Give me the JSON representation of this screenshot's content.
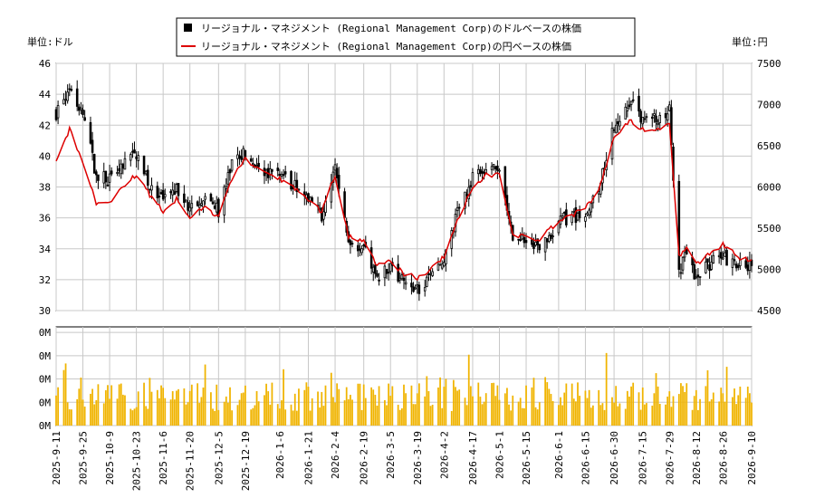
{
  "legend": {
    "usd": "リージョナル・マネジメント (Regional Management Corp)のドルベースの株価",
    "jpy": "リージョナル・マネジメント (Regional Management Corp)の円ベースの株価"
  },
  "unit_left": "単位:ドル",
  "unit_right": "単位:円",
  "colors": {
    "candle": "#000000",
    "jpy_line": "#dd0000",
    "volume": "#f0b400",
    "grid": "#c8c8c8"
  },
  "chart_data": {
    "type": "candlestick",
    "y_left": {
      "min": 30,
      "max": 46,
      "ticks": [
        "30",
        "32",
        "34",
        "36",
        "38",
        "40",
        "42",
        "44",
        "46"
      ]
    },
    "y_right": {
      "min": 4500,
      "max": 7500,
      "ticks": [
        "4500",
        "5000",
        "5500",
        "6000",
        "6500",
        "7000",
        "7500"
      ]
    },
    "volume_axis": {
      "ticks": [
        "0M",
        "0M",
        "0M",
        "0M",
        "0M"
      ]
    },
    "x_tick_labels": [
      "2025-9-11",
      "2025-9-25",
      "2025-10-9",
      "2025-10-23",
      "2025-11-6",
      "2025-11-20",
      "2025-12-5",
      "2025-12-19",
      "2026-1-6",
      "2026-1-21",
      "2026-2-4",
      "2026-2-19",
      "2026-3-5",
      "2026-3-19",
      "2026-4-2",
      "2026-4-17",
      "2026-5-1",
      "2026-5-15",
      "2026-6-1",
      "2026-6-15",
      "2026-6-30",
      "2026-7-15",
      "2026-7-29",
      "2026-8-12",
      "2026-8-26",
      "2026-9-10"
    ],
    "close_keypoints": [
      [
        "2025-9-11",
        42.8
      ],
      [
        "2025-9-18",
        44.5
      ],
      [
        "2025-9-25",
        42.5
      ],
      [
        "2025-10-2",
        38.8
      ],
      [
        "2025-10-9",
        38.5
      ],
      [
        "2025-10-16",
        39.5
      ],
      [
        "2025-10-23",
        40.2
      ],
      [
        "2025-10-30",
        38.0
      ],
      [
        "2025-11-6",
        37.0
      ],
      [
        "2025-11-13",
        38.0
      ],
      [
        "2025-11-20",
        36.5
      ],
      [
        "2025-11-27",
        37.5
      ],
      [
        "2025-12-5",
        36.5
      ],
      [
        "2025-12-12",
        39.5
      ],
      [
        "2025-12-19",
        40.2
      ],
      [
        "2025-12-26",
        39.2
      ],
      [
        "2026-1-6",
        38.8
      ],
      [
        "2026-1-13",
        38.2
      ],
      [
        "2026-1-21",
        37.0
      ],
      [
        "2026-1-28",
        36.2
      ],
      [
        "2026-2-4",
        39.2
      ],
      [
        "2026-2-11",
        34.5
      ],
      [
        "2026-2-19",
        34.2
      ],
      [
        "2026-2-26",
        32.2
      ],
      [
        "2026-3-5",
        33.0
      ],
      [
        "2026-3-12",
        31.8
      ],
      [
        "2026-3-19",
        31.3
      ],
      [
        "2026-3-26",
        32.2
      ],
      [
        "2026-4-2",
        33.0
      ],
      [
        "2026-4-10",
        37.0
      ],
      [
        "2026-4-17",
        38.5
      ],
      [
        "2026-4-24",
        39.2
      ],
      [
        "2026-5-1",
        39.3
      ],
      [
        "2026-5-8",
        34.5
      ],
      [
        "2026-5-15",
        34.5
      ],
      [
        "2026-5-22",
        34.0
      ],
      [
        "2026-6-1",
        35.8
      ],
      [
        "2026-6-8",
        36.0
      ],
      [
        "2026-6-15",
        36.5
      ],
      [
        "2026-6-22",
        38.0
      ],
      [
        "2026-6-30",
        42.0
      ],
      [
        "2026-7-8",
        43.5
      ],
      [
        "2026-7-15",
        42.5
      ],
      [
        "2026-7-22",
        42.3
      ],
      [
        "2026-7-29",
        43.0
      ],
      [
        "2026-8-3",
        32.5
      ],
      [
        "2026-8-8",
        34.0
      ],
      [
        "2026-8-12",
        32.0
      ],
      [
        "2026-8-19",
        33.0
      ],
      [
        "2026-8-26",
        33.5
      ],
      [
        "2026-9-3",
        33.0
      ],
      [
        "2026-9-10",
        32.8
      ]
    ],
    "jpy_keypoints": [
      [
        "2025-9-11",
        6300
      ],
      [
        "2025-9-18",
        6700
      ],
      [
        "2025-9-25",
        6300
      ],
      [
        "2025-10-2",
        5800
      ],
      [
        "2025-10-9",
        5800
      ],
      [
        "2025-10-16",
        6000
      ],
      [
        "2025-10-23",
        6150
      ],
      [
        "2025-10-30",
        5900
      ],
      [
        "2025-11-6",
        5700
      ],
      [
        "2025-11-13",
        5850
      ],
      [
        "2025-11-20",
        5600
      ],
      [
        "2025-11-27",
        5750
      ],
      [
        "2025-12-5",
        5650
      ],
      [
        "2025-12-12",
        6100
      ],
      [
        "2025-12-19",
        6350
      ],
      [
        "2025-12-26",
        6200
      ],
      [
        "2026-1-6",
        6100
      ],
      [
        "2026-1-13",
        6000
      ],
      [
        "2026-1-21",
        5850
      ],
      [
        "2026-1-28",
        5700
      ],
      [
        "2026-2-4",
        6150
      ],
      [
        "2026-2-11",
        5400
      ],
      [
        "2026-2-19",
        5350
      ],
      [
        "2026-2-26",
        5050
      ],
      [
        "2026-3-5",
        5100
      ],
      [
        "2026-3-12",
        4950
      ],
      [
        "2026-3-19",
        4900
      ],
      [
        "2026-3-26",
        5000
      ],
      [
        "2026-4-2",
        5150
      ],
      [
        "2026-4-10",
        5650
      ],
      [
        "2026-4-17",
        6000
      ],
      [
        "2026-4-24",
        6150
      ],
      [
        "2026-5-1",
        6150
      ],
      [
        "2026-5-8",
        5400
      ],
      [
        "2026-5-15",
        5400
      ],
      [
        "2026-5-22",
        5350
      ],
      [
        "2026-6-1",
        5600
      ],
      [
        "2026-6-8",
        5650
      ],
      [
        "2026-6-15",
        5750
      ],
      [
        "2026-6-22",
        5950
      ],
      [
        "2026-6-30",
        6600
      ],
      [
        "2026-7-8",
        6800
      ],
      [
        "2026-7-15",
        6700
      ],
      [
        "2026-7-22",
        6700
      ],
      [
        "2026-7-29",
        6750
      ],
      [
        "2026-8-3",
        5150
      ],
      [
        "2026-8-8",
        5300
      ],
      [
        "2026-8-12",
        5050
      ],
      [
        "2026-8-19",
        5200
      ],
      [
        "2026-8-26",
        5300
      ],
      [
        "2026-9-3",
        5150
      ],
      [
        "2026-9-10",
        5100
      ]
    ]
  }
}
